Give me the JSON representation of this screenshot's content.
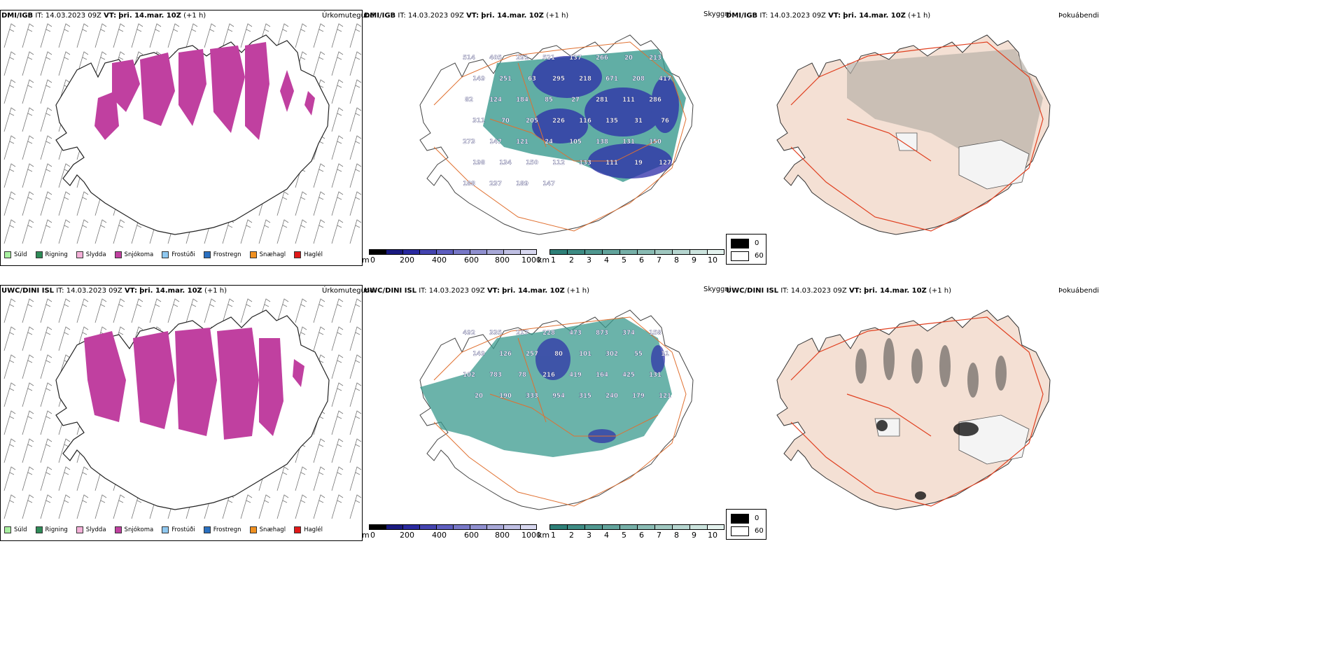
{
  "colors": {
    "snow": "#c040a0",
    "teal": "#3a9a8e",
    "blue": "#2c2ca8",
    "land": "#f4e0d4",
    "road": "#e07030",
    "grey": "#b8b0a8"
  },
  "rows": [
    {
      "model": "DMI/IGB",
      "it_label": "IT:",
      "it_value": "14.03.2023 09Z",
      "vt_label": "VT:",
      "vt_value": "þri. 14.mar. 10Z",
      "lead": "(+1 h)",
      "precip_title": "Úrkomutegund",
      "cloud_title": "Skyggni",
      "fog_title": "Þokuábendi",
      "cloud_labels": [
        "514",
        "405",
        "291",
        "521",
        "137",
        "266",
        "20",
        "213",
        "149",
        "251",
        "63",
        "295",
        "218",
        "671",
        "208",
        "417",
        "82",
        "124",
        "184",
        "85",
        "27",
        "281",
        "111",
        "286",
        "311",
        "70",
        "205",
        "226",
        "116",
        "135",
        "31",
        "76",
        "273",
        "147",
        "121",
        "24",
        "105",
        "138",
        "131",
        "150",
        "198",
        "134",
        "150",
        "112",
        "133",
        "111",
        "19",
        "127",
        "188",
        "237",
        "189",
        "147"
      ]
    },
    {
      "model": "UWC/DINI ISL",
      "it_label": "IT:",
      "it_value": "14.03.2023 09Z",
      "vt_label": "VT:",
      "vt_value": "þri. 14.mar. 10Z",
      "lead": "(+1 h)",
      "precip_title": "Úrkomutegund",
      "cloud_title": "Skyggni",
      "fog_title": "Þokuábendi",
      "cloud_labels": [
        "492",
        "335",
        "217",
        "228",
        "473",
        "873",
        "374",
        "158",
        "149",
        "126",
        "257",
        "80",
        "101",
        "302",
        "55",
        "11",
        "102",
        "783",
        "78",
        "216",
        "419",
        "164",
        "425",
        "131",
        "20",
        "190",
        "333",
        "954",
        "315",
        "240",
        "179",
        "121"
      ]
    }
  ],
  "precip_legend": [
    {
      "label": "Súld",
      "color": "#a8f0a0"
    },
    {
      "label": "Rigning",
      "color": "#2e8b57"
    },
    {
      "label": "Slydda",
      "color": "#f4b0d8"
    },
    {
      "label": "Snjókoma",
      "color": "#c040a0"
    },
    {
      "label": "Frostúði",
      "color": "#8fc8f0"
    },
    {
      "label": "Frostregn",
      "color": "#2a70c0"
    },
    {
      "label": "Snæhagl",
      "color": "#f09020"
    },
    {
      "label": "Haglél",
      "color": "#e01818"
    }
  ],
  "cloud_base_bar": {
    "unit": "m",
    "ticks": [
      "0",
      "200",
      "400",
      "600",
      "800",
      "1000"
    ],
    "colors": [
      "#000000",
      "#1a1a80",
      "#2a2aa0",
      "#4444b0",
      "#5e5ec0",
      "#7878c8",
      "#9090d0",
      "#a8a8d8",
      "#c0c0e4",
      "#d8d8f0"
    ]
  },
  "visibility_bar": {
    "unit": "km",
    "ticks": [
      "1",
      "2",
      "3",
      "4",
      "5",
      "6",
      "7",
      "8",
      "9",
      "10"
    ],
    "colors": [
      "#2e8078",
      "#3e8c84",
      "#509890",
      "#62a49c",
      "#76b0a8",
      "#8abcb4",
      "#a0c8c0",
      "#b6d6d0",
      "#cce4de",
      "#e4f2ee"
    ]
  },
  "fog_legend": [
    {
      "label": "0",
      "color": "#000000"
    },
    {
      "label": "60",
      "color": "#ffffff"
    }
  ]
}
